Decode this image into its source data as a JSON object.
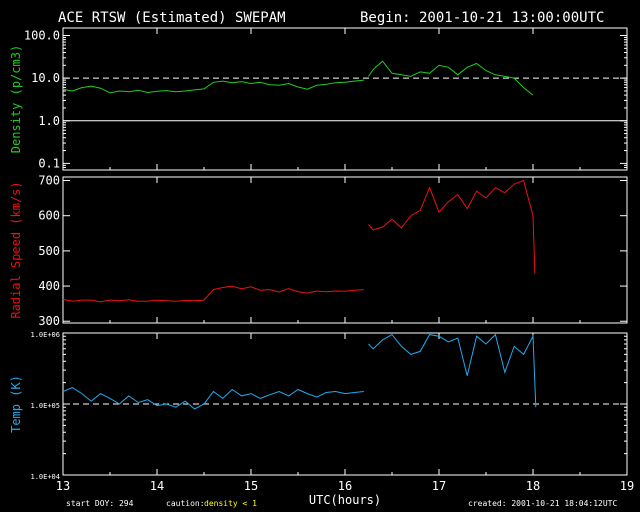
{
  "title": {
    "left": "ACE RTSW (Estimated) SWEPAM",
    "right": "Begin: 2001-10-21 13:00:00UTC"
  },
  "footer": {
    "start_doy": "start DOY: 294",
    "caution_label": "caution:",
    "caution_value": "density < 1",
    "xlabel": "UTC(hours)",
    "created": "created: 2001-10-21 18:04:12UTC"
  },
  "colors": {
    "density": "#22cc22",
    "speed": "#ee1111",
    "temp": "#22aaee",
    "axes": "#ffffff",
    "caution": "#ffff00"
  },
  "chart_data": [
    {
      "type": "line",
      "ylabel": "Density (p/cm3)",
      "yscale": "log",
      "ylim": [
        0.07,
        150
      ],
      "xlim": [
        13,
        19
      ],
      "yticks": [
        0.1,
        1.0,
        10.0,
        100.0
      ],
      "ytick_labels": [
        "0.1",
        "1.0",
        "10.0",
        "100.0"
      ],
      "reference_lines": [
        {
          "y": 10,
          "style": "dashed"
        },
        {
          "y": 1,
          "style": "solid"
        }
      ],
      "segments": [
        {
          "x": [
            13.0,
            13.1,
            13.2,
            13.3,
            13.4,
            13.5,
            13.6,
            13.7,
            13.8,
            13.9,
            14.0,
            14.1,
            14.2,
            14.3,
            14.4,
            14.5,
            14.6,
            14.7,
            14.8,
            14.9,
            15.0,
            15.1,
            15.2,
            15.3,
            15.4,
            15.5,
            15.6,
            15.7,
            15.8,
            15.9,
            16.0,
            16.1,
            16.2
          ],
          "y": [
            5.5,
            5.0,
            6.0,
            6.5,
            5.8,
            4.5,
            5.0,
            4.8,
            5.2,
            4.6,
            4.9,
            5.1,
            4.8,
            5.0,
            5.3,
            5.6,
            8.0,
            8.5,
            7.8,
            8.3,
            7.5,
            8.0,
            7.0,
            6.8,
            7.5,
            6.2,
            5.5,
            6.8,
            7.2,
            7.8,
            8.0,
            8.5,
            9.0
          ]
        },
        {
          "x": [
            16.25,
            16.3,
            16.4,
            16.5,
            16.6,
            16.7,
            16.8,
            16.9,
            17.0,
            17.1,
            17.2,
            17.3,
            17.4,
            17.5,
            17.6,
            17.7,
            17.8,
            17.9,
            18.0
          ],
          "y": [
            11.0,
            16.0,
            25.0,
            13.0,
            12.0,
            11.0,
            14.0,
            13.0,
            20.0,
            18.0,
            12.0,
            18.0,
            22.0,
            15.0,
            12.0,
            11.0,
            10.0,
            6.0,
            4.0
          ]
        }
      ]
    },
    {
      "type": "line",
      "ylabel": "Radial Speed (km/s)",
      "ylim": [
        295,
        710
      ],
      "xlim": [
        13,
        19
      ],
      "yticks": [
        300,
        400,
        500,
        600,
        700
      ],
      "ytick_labels": [
        "300",
        "400",
        "500",
        "600",
        "700"
      ],
      "segments": [
        {
          "x": [
            13.0,
            13.1,
            13.2,
            13.3,
            13.4,
            13.5,
            13.6,
            13.7,
            13.8,
            13.9,
            14.0,
            14.1,
            14.2,
            14.3,
            14.4,
            14.5,
            14.6,
            14.7,
            14.8,
            14.9,
            15.0,
            15.1,
            15.2,
            15.3,
            15.4,
            15.5,
            15.6,
            15.7,
            15.8,
            15.9,
            16.0,
            16.1,
            16.2
          ],
          "y": [
            362,
            357,
            360,
            360,
            355,
            360,
            358,
            361,
            357,
            357,
            360,
            358,
            357,
            359,
            358,
            360,
            390,
            396,
            400,
            392,
            398,
            388,
            390,
            383,
            393,
            384,
            380,
            386,
            384,
            386,
            385,
            388,
            390
          ]
        },
        {
          "x": [
            16.25,
            16.3,
            16.4,
            16.5,
            16.6,
            16.7,
            16.8,
            16.9,
            17.0,
            17.1,
            17.2,
            17.3,
            17.4,
            17.5,
            17.6,
            17.7,
            17.8,
            17.9,
            18.0,
            18.02
          ],
          "y": [
            575,
            560,
            568,
            590,
            565,
            600,
            615,
            680,
            610,
            640,
            660,
            620,
            670,
            650,
            680,
            665,
            690,
            700,
            600,
            435
          ]
        }
      ]
    },
    {
      "type": "line",
      "ylabel": "Temp (K)",
      "yscale": "log",
      "ylim": [
        10000,
        1000000
      ],
      "xlim": [
        13,
        19
      ],
      "yticks": [
        10000,
        100000,
        1000000
      ],
      "ytick_labels": [
        "1.0E+04",
        "1.0E+05",
        "1.0E+06"
      ],
      "reference_lines": [
        {
          "y": 100000,
          "style": "dashed"
        }
      ],
      "segments": [
        {
          "x": [
            13.0,
            13.1,
            13.2,
            13.3,
            13.4,
            13.5,
            13.6,
            13.7,
            13.8,
            13.9,
            14.0,
            14.1,
            14.2,
            14.3,
            14.4,
            14.5,
            14.6,
            14.7,
            14.8,
            14.9,
            15.0,
            15.1,
            15.2,
            15.3,
            15.4,
            15.5,
            15.6,
            15.7,
            15.8,
            15.9,
            16.0,
            16.1,
            16.2
          ],
          "y": [
            150000,
            170000,
            140000,
            110000,
            140000,
            120000,
            100000,
            130000,
            105000,
            115000,
            95000,
            100000,
            90000,
            110000,
            85000,
            100000,
            150000,
            120000,
            160000,
            130000,
            140000,
            120000,
            135000,
            150000,
            130000,
            160000,
            140000,
            125000,
            145000,
            150000,
            140000,
            145000,
            150000
          ]
        },
        {
          "x": [
            16.25,
            16.3,
            16.4,
            16.5,
            16.6,
            16.7,
            16.8,
            16.9,
            17.0,
            17.1,
            17.2,
            17.3,
            17.4,
            17.5,
            17.6,
            17.7,
            17.8,
            17.9,
            18.0,
            18.03
          ],
          "y": [
            700000,
            600000,
            800000,
            950000,
            650000,
            500000,
            550000,
            950000,
            900000,
            750000,
            850000,
            250000,
            900000,
            700000,
            950000,
            280000,
            650000,
            500000,
            900000,
            90000
          ]
        }
      ]
    }
  ]
}
